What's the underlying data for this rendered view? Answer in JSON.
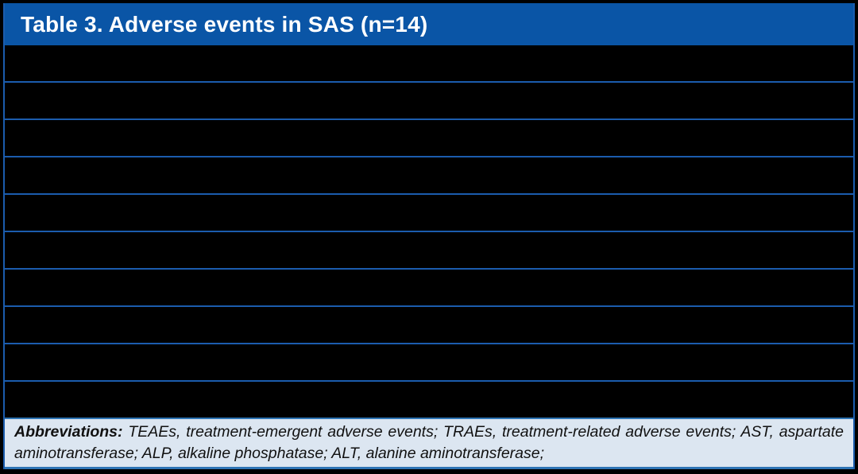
{
  "colors": {
    "page_bg": "#000000",
    "header_bg": "#0A55A6",
    "divider": "#1B5CAD",
    "row_bg": "#000000",
    "footer_bg": "#DCE6F1",
    "footer_border": "#2E74B5",
    "title_color": "#FFFFFF",
    "footnote_text": "#111111"
  },
  "header": {
    "title": "Table 3. Adverse events in SAS (n=14)"
  },
  "table": {
    "rows": [
      "",
      "",
      "",
      "",
      "",
      "",
      "",
      "",
      "",
      ""
    ]
  },
  "footer": {
    "label": "Abbreviations:",
    "text": "TEAEs, treatment-emergent adverse events; TRAEs, treatment-related adverse events; AST, aspartate aminotransferase; ALP, alkaline phosphatase; ALT, alanine aminotransferase;"
  }
}
